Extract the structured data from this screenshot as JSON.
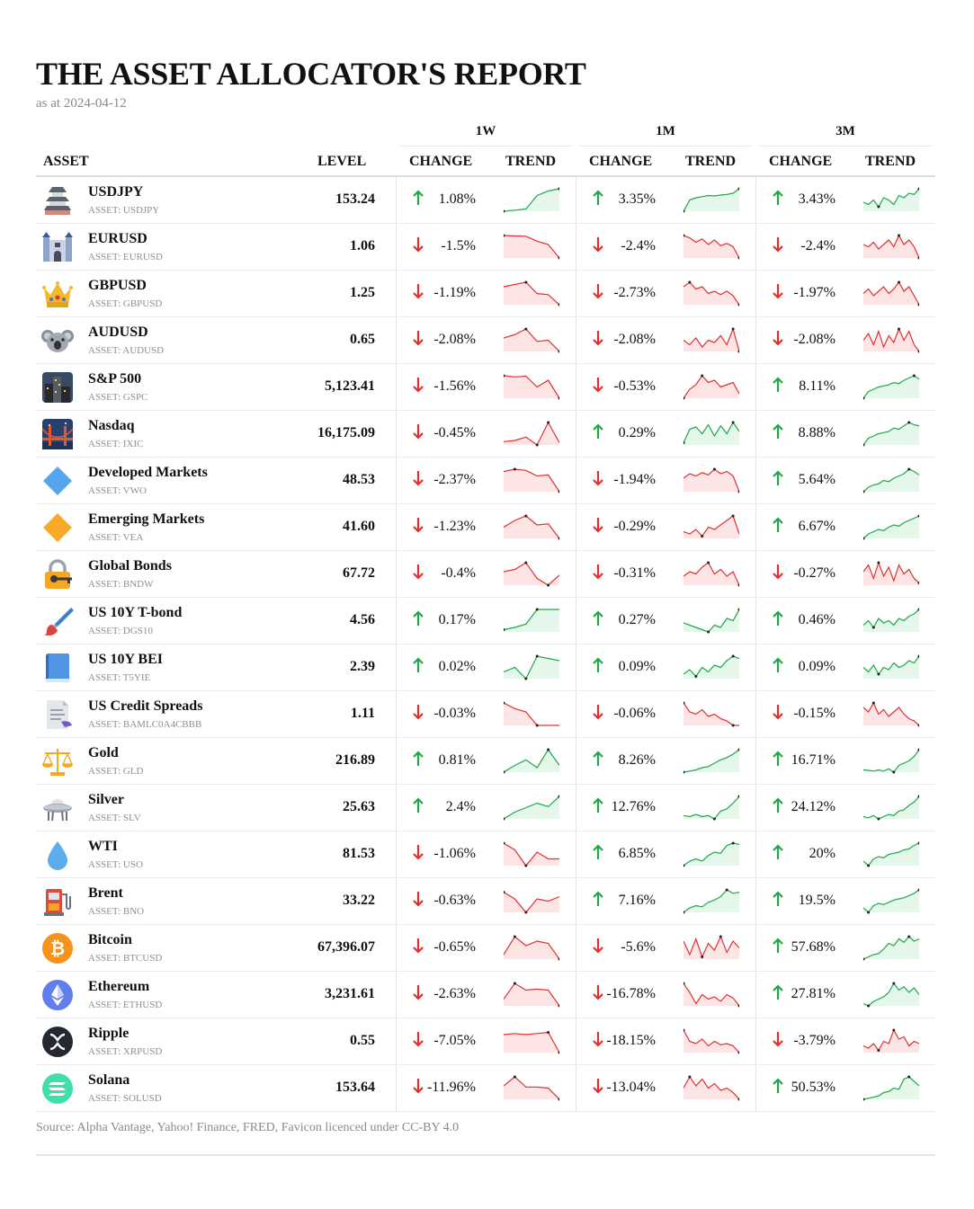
{
  "title": "THE ASSET ALLOCATOR'S REPORT",
  "as_at": "as at 2024-04-12",
  "periods": [
    "1W",
    "1M",
    "3M"
  ],
  "headers": {
    "asset": "ASSET",
    "level": "LEVEL",
    "change": "CHANGE",
    "trend": "TREND"
  },
  "colors": {
    "up": "#1fa84a",
    "down": "#e03131",
    "up_fill": "#e5f7ea",
    "down_fill": "#fde5e5"
  },
  "rows": [
    {
      "name": "USDJPY",
      "sub": "ASSET: USDJPY",
      "level": "153.24",
      "icon": "japanese-castle-icon",
      "w1": {
        "change": "1.08%",
        "up": true,
        "trend": [
          0,
          0.05,
          0.1,
          0.7,
          0.9,
          1
        ]
      },
      "m1": {
        "change": "3.35%",
        "up": true,
        "trend": [
          0,
          0.5,
          0.6,
          0.65,
          0.7,
          0.68,
          0.72,
          0.75,
          0.8,
          1
        ]
      },
      "m3": {
        "change": "3.43%",
        "up": true,
        "trend": [
          0.4,
          0.3,
          0.5,
          0.2,
          0.6,
          0.5,
          0.3,
          0.7,
          0.6,
          0.8,
          0.75,
          1
        ]
      }
    },
    {
      "name": "EURUSD",
      "sub": "ASSET: EURUSD",
      "level": "1.06",
      "icon": "european-castle-icon",
      "w1": {
        "change": "-1.5%",
        "up": false,
        "trend": [
          1,
          0.98,
          0.97,
          0.75,
          0.6,
          0
        ]
      },
      "m1": {
        "change": "-2.4%",
        "up": false,
        "trend": [
          1,
          0.9,
          0.7,
          0.85,
          0.6,
          0.8,
          0.55,
          0.65,
          0.5,
          0
        ]
      },
      "m3": {
        "change": "-2.4%",
        "up": false,
        "trend": [
          0.6,
          0.5,
          0.7,
          0.4,
          0.6,
          0.8,
          0.5,
          1,
          0.6,
          0.8,
          0.5,
          0
        ]
      }
    },
    {
      "name": "GBPUSD",
      "sub": "ASSET: GBPUSD",
      "level": "1.25",
      "icon": "crown-icon",
      "w1": {
        "change": "-1.19%",
        "up": false,
        "trend": [
          0.8,
          0.9,
          1,
          0.5,
          0.45,
          0
        ]
      },
      "m1": {
        "change": "-2.73%",
        "up": false,
        "trend": [
          0.8,
          1,
          0.7,
          0.8,
          0.5,
          0.6,
          0.45,
          0.6,
          0.4,
          0
        ]
      },
      "m3": {
        "change": "-1.97%",
        "up": false,
        "trend": [
          0.5,
          0.7,
          0.4,
          0.6,
          0.8,
          0.5,
          0.7,
          1,
          0.6,
          0.8,
          0.4,
          0
        ]
      }
    },
    {
      "name": "AUDUSD",
      "sub": "ASSET: AUDUSD",
      "level": "0.65",
      "icon": "koala-icon",
      "w1": {
        "change": "-2.08%",
        "up": false,
        "trend": [
          0.6,
          0.75,
          1,
          0.45,
          0.5,
          0
        ]
      },
      "m1": {
        "change": "-2.08%",
        "up": false,
        "trend": [
          0.5,
          0.3,
          0.6,
          0.2,
          0.5,
          0.4,
          0.7,
          0.3,
          1,
          0
        ]
      },
      "m3": {
        "change": "-2.08%",
        "up": false,
        "trend": [
          0.5,
          0.8,
          0.3,
          0.9,
          0.2,
          0.7,
          0.4,
          1,
          0.5,
          0.9,
          0.3,
          0
        ]
      }
    },
    {
      "name": "S&P 500",
      "sub": "ASSET: GSPC",
      "level": "5,123.41",
      "icon": "cityscape-icon",
      "w1": {
        "change": "-1.56%",
        "up": false,
        "trend": [
          1,
          0.95,
          0.98,
          0.5,
          0.8,
          0
        ]
      },
      "m1": {
        "change": "-0.53%",
        "up": false,
        "trend": [
          0,
          0.4,
          0.6,
          1,
          0.7,
          0.8,
          0.5,
          0.6,
          0.7,
          0.2
        ]
      },
      "m3": {
        "change": "8.11%",
        "up": true,
        "trend": [
          0,
          0.3,
          0.4,
          0.5,
          0.55,
          0.6,
          0.7,
          0.65,
          0.8,
          0.9,
          1,
          0.85
        ]
      }
    },
    {
      "name": "Nasdaq",
      "sub": "ASSET: IXIC",
      "level": "16,175.09",
      "icon": "bridge-at-night-icon",
      "w1": {
        "change": "-0.45%",
        "up": false,
        "trend": [
          0.15,
          0.2,
          0.35,
          0,
          1,
          0.1
        ]
      },
      "m1": {
        "change": "0.29%",
        "up": true,
        "trend": [
          0.1,
          0.7,
          0.8,
          0.5,
          0.9,
          0.4,
          0.85,
          0.5,
          1,
          0.6
        ]
      },
      "m3": {
        "change": "8.88%",
        "up": true,
        "trend": [
          0,
          0.3,
          0.4,
          0.5,
          0.55,
          0.6,
          0.75,
          0.7,
          0.85,
          1,
          0.9,
          0.85
        ]
      }
    },
    {
      "name": "Developed Markets",
      "sub": "ASSET: VWO",
      "level": "48.53",
      "icon": "blue-diamond-icon",
      "w1": {
        "change": "-2.37%",
        "up": false,
        "trend": [
          0.9,
          1,
          0.95,
          0.7,
          0.75,
          0
        ]
      },
      "m1": {
        "change": "-1.94%",
        "up": false,
        "trend": [
          0.6,
          0.8,
          0.7,
          0.85,
          0.75,
          1,
          0.8,
          0.9,
          0.7,
          0
        ]
      },
      "m3": {
        "change": "5.64%",
        "up": true,
        "trend": [
          0,
          0.2,
          0.3,
          0.35,
          0.5,
          0.45,
          0.6,
          0.7,
          0.8,
          1,
          0.9,
          0.75
        ]
      }
    },
    {
      "name": "Emerging Markets",
      "sub": "ASSET: VEA",
      "level": "41.60",
      "icon": "orange-diamond-icon",
      "w1": {
        "change": "-1.23%",
        "up": false,
        "trend": [
          0.5,
          0.8,
          1,
          0.6,
          0.65,
          0
        ]
      },
      "m1": {
        "change": "-0.29%",
        "up": false,
        "trend": [
          0.3,
          0.2,
          0.4,
          0.1,
          0.5,
          0.4,
          0.6,
          0.8,
          1,
          0.2
        ]
      },
      "m3": {
        "change": "6.67%",
        "up": true,
        "trend": [
          0,
          0.2,
          0.3,
          0.4,
          0.35,
          0.5,
          0.6,
          0.55,
          0.7,
          0.8,
          0.9,
          1
        ]
      }
    },
    {
      "name": "Global Bonds",
      "sub": "ASSET: BNDW",
      "level": "67.72",
      "icon": "locked-with-key-icon",
      "w1": {
        "change": "-0.4%",
        "up": false,
        "trend": [
          0.6,
          0.7,
          1,
          0.3,
          0,
          0.45
        ]
      },
      "m1": {
        "change": "-0.31%",
        "up": false,
        "trend": [
          0.4,
          0.6,
          0.5,
          0.8,
          1,
          0.5,
          0.7,
          0.4,
          0.6,
          0
        ]
      },
      "m3": {
        "change": "-0.27%",
        "up": false,
        "trend": [
          0.6,
          0.9,
          0.3,
          1,
          0.4,
          0.8,
          0.2,
          0.9,
          0.5,
          0.7,
          0.3,
          0.1
        ]
      }
    },
    {
      "name": "US 10Y T-bond",
      "sub": "ASSET: DGS10",
      "level": "4.56",
      "icon": "paintbrush-icon",
      "w1": {
        "change": "0.17%",
        "up": true,
        "trend": [
          0.1,
          0.2,
          0.35,
          1,
          1,
          1
        ]
      },
      "m1": {
        "change": "0.27%",
        "up": true,
        "trend": [
          0.4,
          0.3,
          0.2,
          0.1,
          0,
          0.3,
          0.2,
          0.6,
          0.5,
          1
        ]
      },
      "m3": {
        "change": "0.46%",
        "up": true,
        "trend": [
          0.3,
          0.5,
          0.2,
          0.6,
          0.4,
          0.5,
          0.3,
          0.6,
          0.5,
          0.7,
          0.8,
          1
        ]
      }
    },
    {
      "name": "US 10Y BEI",
      "sub": "ASSET: T5YIE",
      "level": "2.39",
      "icon": "blue-book-icon",
      "w1": {
        "change": "0.02%",
        "up": true,
        "trend": [
          0.3,
          0.5,
          0,
          1,
          0.9,
          0.8
        ]
      },
      "m1": {
        "change": "0.09%",
        "up": true,
        "trend": [
          0.2,
          0.4,
          0.1,
          0.5,
          0.3,
          0.6,
          0.5,
          0.8,
          1,
          0.9
        ]
      },
      "m3": {
        "change": "0.09%",
        "up": true,
        "trend": [
          0.5,
          0.3,
          0.6,
          0.2,
          0.5,
          0.4,
          0.7,
          0.5,
          0.6,
          0.8,
          0.7,
          1
        ]
      }
    },
    {
      "name": "US Credit Spreads",
      "sub": "ASSET: BAMLC0A4CBBB",
      "level": "1.11",
      "icon": "page-with-curl-icon",
      "w1": {
        "change": "-0.03%",
        "up": false,
        "trend": [
          1,
          0.75,
          0.6,
          0,
          0,
          0
        ]
      },
      "m1": {
        "change": "-0.06%",
        "up": false,
        "trend": [
          1,
          0.6,
          0.5,
          0.7,
          0.4,
          0.5,
          0.3,
          0.2,
          0,
          0
        ]
      },
      "m3": {
        "change": "-0.15%",
        "up": false,
        "trend": [
          0.8,
          0.6,
          1,
          0.5,
          0.7,
          0.4,
          0.6,
          0.8,
          0.5,
          0.3,
          0.2,
          0
        ]
      }
    },
    {
      "name": "Gold",
      "sub": "ASSET: GLD",
      "level": "216.89",
      "icon": "balance-scale-icon",
      "w1": {
        "change": "0.81%",
        "up": true,
        "trend": [
          0,
          0.3,
          0.55,
          0.2,
          1,
          0.3
        ]
      },
      "m1": {
        "change": "8.26%",
        "up": true,
        "trend": [
          0,
          0.05,
          0.1,
          0.2,
          0.25,
          0.4,
          0.55,
          0.65,
          0.8,
          1
        ]
      },
      "m3": {
        "change": "16.71%",
        "up": true,
        "trend": [
          0.1,
          0.08,
          0.05,
          0.1,
          0.05,
          0.15,
          0,
          0.3,
          0.4,
          0.5,
          0.7,
          1
        ]
      }
    },
    {
      "name": "Silver",
      "sub": "ASSET: SLV",
      "level": "25.63",
      "icon": "ufo-icon",
      "w1": {
        "change": "2.4%",
        "up": true,
        "trend": [
          0,
          0.3,
          0.5,
          0.7,
          0.55,
          1
        ]
      },
      "m1": {
        "change": "12.76%",
        "up": true,
        "trend": [
          0.15,
          0.1,
          0.2,
          0.1,
          0.15,
          0,
          0.35,
          0.45,
          0.7,
          1
        ]
      },
      "m3": {
        "change": "24.12%",
        "up": true,
        "trend": [
          0.1,
          0.05,
          0.15,
          0,
          0.1,
          0.2,
          0.15,
          0.35,
          0.4,
          0.6,
          0.75,
          1
        ]
      }
    },
    {
      "name": "WTI",
      "sub": "ASSET: USO",
      "level": "81.53",
      "icon": "droplet-icon",
      "w1": {
        "change": "-1.06%",
        "up": false,
        "trend": [
          1,
          0.7,
          0,
          0.6,
          0.3,
          0.3
        ]
      },
      "m1": {
        "change": "6.85%",
        "up": true,
        "trend": [
          0,
          0.2,
          0.3,
          0.2,
          0.45,
          0.6,
          0.55,
          0.9,
          1,
          0.95
        ]
      },
      "m3": {
        "change": "20%",
        "up": true,
        "trend": [
          0.2,
          0,
          0.3,
          0.4,
          0.35,
          0.5,
          0.55,
          0.6,
          0.7,
          0.75,
          0.9,
          1
        ]
      }
    },
    {
      "name": "Brent",
      "sub": "ASSET: BNO",
      "level": "33.22",
      "icon": "fuel-pump-icon",
      "w1": {
        "change": "-0.63%",
        "up": false,
        "trend": [
          0.9,
          0.6,
          0,
          0.6,
          0.5,
          0.7
        ]
      },
      "m1": {
        "change": "7.16%",
        "up": true,
        "trend": [
          0,
          0.2,
          0.3,
          0.25,
          0.45,
          0.55,
          0.7,
          1,
          0.85,
          0.9
        ]
      },
      "m3": {
        "change": "19.5%",
        "up": true,
        "trend": [
          0.2,
          0,
          0.3,
          0.4,
          0.35,
          0.45,
          0.55,
          0.6,
          0.65,
          0.75,
          0.85,
          1
        ]
      }
    },
    {
      "name": "Bitcoin",
      "sub": "ASSET: BTCUSD",
      "level": "67,396.07",
      "icon": "bitcoin-icon",
      "w1": {
        "change": "-0.65%",
        "up": false,
        "trend": [
          0.2,
          1,
          0.6,
          0.8,
          0.7,
          0
        ]
      },
      "m1": {
        "change": "-5.6%",
        "up": false,
        "trend": [
          0.8,
          0.2,
          0.9,
          0.1,
          0.7,
          0.4,
          1,
          0.3,
          0.8,
          0.5
        ]
      },
      "m3": {
        "change": "57.68%",
        "up": true,
        "trend": [
          0,
          0.1,
          0.2,
          0.25,
          0.45,
          0.7,
          0.6,
          0.9,
          0.75,
          1,
          0.8,
          0.9
        ]
      }
    },
    {
      "name": "Ethereum",
      "sub": "ASSET: ETHUSD",
      "level": "3,231.61",
      "icon": "ethereum-icon",
      "w1": {
        "change": "-2.63%",
        "up": false,
        "trend": [
          0.3,
          1,
          0.7,
          0.75,
          0.7,
          0
        ]
      },
      "m1": {
        "change": "-16.78%",
        "up": false,
        "trend": [
          1,
          0.6,
          0.1,
          0.5,
          0.3,
          0.4,
          0.2,
          0.5,
          0.35,
          0
        ]
      },
      "m3": {
        "change": "27.81%",
        "up": true,
        "trend": [
          0.1,
          0,
          0.2,
          0.3,
          0.4,
          0.6,
          1,
          0.7,
          0.85,
          0.6,
          0.8,
          0.5
        ]
      }
    },
    {
      "name": "Ripple",
      "sub": "ASSET: XRPUSD",
      "level": "0.55",
      "icon": "ripple-icon",
      "w1": {
        "change": "-7.05%",
        "up": false,
        "trend": [
          0.8,
          0.85,
          0.8,
          0.85,
          0.9,
          0
        ]
      },
      "m1": {
        "change": "-18.15%",
        "up": false,
        "trend": [
          1,
          0.5,
          0.4,
          0.6,
          0.3,
          0.5,
          0.35,
          0.4,
          0.3,
          0
        ]
      },
      "m3": {
        "change": "-3.79%",
        "up": false,
        "trend": [
          0.3,
          0.2,
          0.4,
          0.1,
          0.5,
          0.4,
          1,
          0.6,
          0.7,
          0.3,
          0.5,
          0.4
        ]
      }
    },
    {
      "name": "Solana",
      "sub": "ASSET: SOLUSD",
      "level": "153.64",
      "icon": "solana-icon",
      "w1": {
        "change": "-11.96%",
        "up": false,
        "trend": [
          0.6,
          1,
          0.55,
          0.55,
          0.5,
          0
        ]
      },
      "m1": {
        "change": "-13.04%",
        "up": false,
        "trend": [
          0.5,
          1,
          0.6,
          0.9,
          0.5,
          0.7,
          0.4,
          0.5,
          0.3,
          0
        ]
      },
      "m3": {
        "change": "50.53%",
        "up": true,
        "trend": [
          0,
          0.05,
          0.1,
          0.15,
          0.3,
          0.35,
          0.5,
          0.45,
          0.9,
          1,
          0.8,
          0.6
        ]
      }
    }
  ],
  "source": "Source: Alpha Vantage, Yahoo! Finance, FRED, Favicon licenced under CC-BY 4.0"
}
